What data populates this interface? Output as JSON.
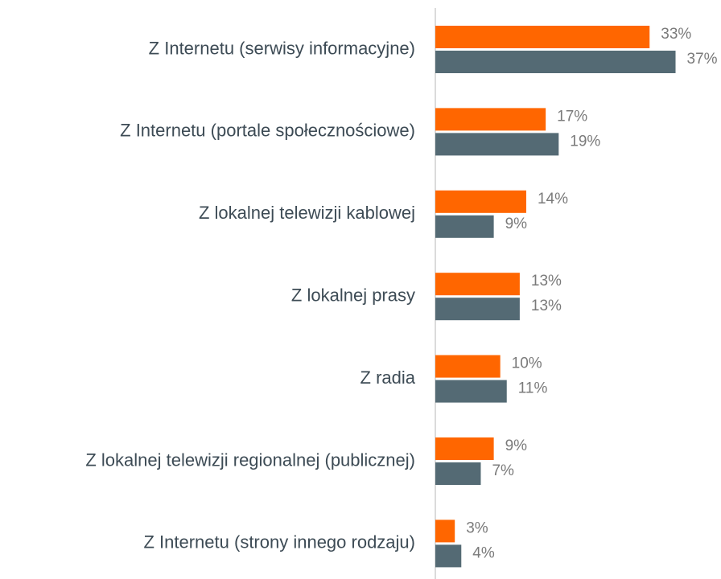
{
  "chart_data": {
    "type": "bar",
    "orientation": "horizontal",
    "categories": [
      "Z Internetu (serwisy informacyjne)",
      "Z Internetu (portale społecznościowe)",
      "Z lokalnej telewizji kablowej",
      "Z lokalnej prasy",
      "Z radia",
      "Z lokalnej telewizji regionalnej (publicznej)",
      "Z Internetu (strony innego rodzaju)"
    ],
    "series": [
      {
        "color": "#ff6600",
        "values": [
          33,
          17,
          14,
          13,
          10,
          9,
          3
        ],
        "value_labels": [
          "33%",
          "17%",
          "14%",
          "13%",
          "10%",
          "9%",
          "3%"
        ]
      },
      {
        "color": "#546a74",
        "values": [
          37,
          19,
          9,
          13,
          11,
          7,
          4
        ],
        "value_labels": [
          "37%",
          "19%",
          "9%",
          "13%",
          "11%",
          "7%",
          "4%"
        ]
      }
    ],
    "xlim": [
      0,
      44
    ]
  }
}
